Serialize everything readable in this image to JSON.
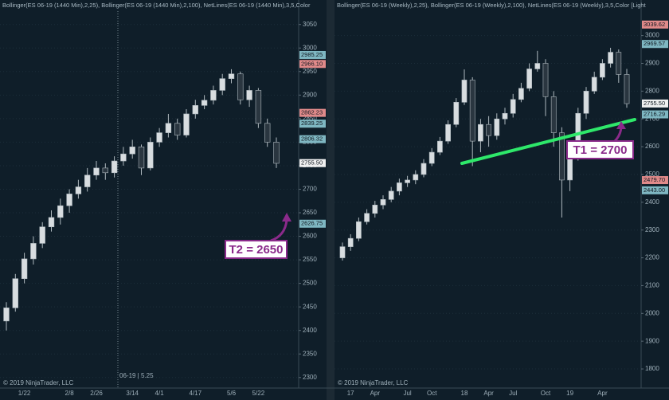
{
  "chart_data": [
    {
      "type": "candlestick",
      "header": "Bollinger(ES 06-19 (1440 Min),2,25), Bollinger(ES 06-19 (1440 Min),2,100), NetLines(ES 06-19 (1440 Min),3,5,Color",
      "footer": "© 2019 NinjaTrader, LLC",
      "cursor_label": "06-19 | 5.25",
      "target": "T2 = 2650",
      "categories": [
        null,
        null,
        "1/22",
        null,
        null,
        null,
        null,
        "2/8",
        null,
        null,
        "2/26",
        null,
        null,
        null,
        "3/14",
        null,
        null,
        "4/1",
        null,
        null,
        null,
        "4/17",
        null,
        null,
        null,
        "5/6",
        null,
        null,
        "5/22",
        null,
        null
      ],
      "open": [
        2420,
        2448,
        2510,
        2552,
        2585,
        2620,
        2640,
        2665,
        2690,
        2705,
        2730,
        2745,
        2735,
        2760,
        2775,
        2790,
        2745,
        2800,
        2820,
        2840,
        2815,
        2860,
        2878,
        2889,
        2910,
        2935,
        2945,
        2890,
        2910,
        2840,
        2800
      ],
      "high": [
        2460,
        2520,
        2565,
        2600,
        2630,
        2655,
        2680,
        2700,
        2720,
        2745,
        2760,
        2755,
        2770,
        2790,
        2805,
        2795,
        2810,
        2830,
        2860,
        2850,
        2870,
        2890,
        2900,
        2920,
        2945,
        2955,
        2950,
        2920,
        2915,
        2850,
        2810
      ],
      "low": [
        2400,
        2440,
        2500,
        2540,
        2575,
        2610,
        2625,
        2650,
        2680,
        2695,
        2720,
        2720,
        2725,
        2750,
        2765,
        2730,
        2740,
        2790,
        2810,
        2805,
        2810,
        2850,
        2870,
        2880,
        2900,
        2925,
        2880,
        2875,
        2830,
        2790,
        2745
      ],
      "close": [
        2448,
        2510,
        2552,
        2585,
        2620,
        2640,
        2665,
        2690,
        2705,
        2730,
        2745,
        2735,
        2760,
        2775,
        2790,
        2745,
        2800,
        2820,
        2840,
        2815,
        2860,
        2878,
        2889,
        2910,
        2935,
        2945,
        2890,
        2910,
        2840,
        2800,
        2755
      ],
      "up_color": "#d8dde0",
      "down_color": "#2a3640",
      "wick_color": "#aeb8be",
      "ylim": [
        2281,
        3102
      ],
      "yticks": [
        2300,
        2350,
        2400,
        2450,
        2500,
        2550,
        2600,
        2650,
        2700,
        2750,
        2800,
        2850,
        2900,
        2950,
        3000,
        3050
      ],
      "grid": true,
      "price_tags": [
        {
          "value": 2985.25,
          "label": "2985.25",
          "color": "#7fb7c2"
        },
        {
          "value": 2966.1,
          "label": "2966.10",
          "color": "#e08a8a"
        },
        {
          "value": 2862.23,
          "label": "2862.23",
          "color": "#e08a8a"
        },
        {
          "value": 2839.25,
          "label": "2839.25",
          "color": "#7fb7c2"
        },
        {
          "value": 2806.32,
          "label": "2806.32",
          "color": "#7fb7c2"
        },
        {
          "value": 2755.5,
          "label": "2755.50",
          "color": "#f0f0f0"
        },
        {
          "value": 2626.75,
          "label": "2626.75",
          "color": "#7fb7c2"
        }
      ]
    },
    {
      "type": "candlestick",
      "header": "Bollinger(ES 06-19 (Weekly),2,25), Bollinger(ES 06-19 (Weekly),2,100), NetLines(ES 06-19 (Weekly),3,5,Color [Light",
      "footer": "© 2019 NinjaTrader, LLC",
      "target": "T1 = 2700",
      "categories": [
        null,
        "17",
        null,
        null,
        "Apr",
        null,
        null,
        null,
        "Jul",
        null,
        null,
        "Oct",
        null,
        null,
        null,
        "18",
        null,
        null,
        "Apr",
        null,
        null,
        "Jul",
        null,
        null,
        null,
        "Oct",
        null,
        null,
        "19",
        null,
        null,
        null,
        "Apr",
        null,
        null,
        null
      ],
      "open": [
        2200,
        2240,
        2270,
        2330,
        2360,
        2390,
        2410,
        2440,
        2470,
        2480,
        2500,
        2540,
        2580,
        2620,
        2680,
        2760,
        2840,
        2620,
        2680,
        2640,
        2700,
        2720,
        2770,
        2810,
        2880,
        2900,
        2780,
        2650,
        2480,
        2560,
        2720,
        2800,
        2850,
        2900,
        2940,
        2860
      ],
      "high": [
        2255,
        2285,
        2345,
        2375,
        2405,
        2425,
        2455,
        2485,
        2495,
        2515,
        2555,
        2595,
        2635,
        2695,
        2775,
        2878,
        2850,
        2700,
        2710,
        2720,
        2740,
        2790,
        2830,
        2900,
        2945,
        2915,
        2800,
        2670,
        2580,
        2740,
        2815,
        2870,
        2915,
        2956,
        2950,
        2880
      ],
      "low": [
        2190,
        2225,
        2260,
        2320,
        2345,
        2375,
        2400,
        2425,
        2455,
        2465,
        2490,
        2530,
        2570,
        2610,
        2670,
        2750,
        2530,
        2580,
        2600,
        2625,
        2680,
        2705,
        2760,
        2800,
        2870,
        2710,
        2600,
        2345,
        2440,
        2550,
        2700,
        2790,
        2840,
        2885,
        2830,
        2740
      ],
      "close": [
        2240,
        2270,
        2330,
        2360,
        2390,
        2410,
        2440,
        2470,
        2480,
        2500,
        2540,
        2580,
        2620,
        2680,
        2760,
        2840,
        2620,
        2680,
        2640,
        2700,
        2720,
        2770,
        2810,
        2880,
        2900,
        2780,
        2650,
        2480,
        2560,
        2720,
        2800,
        2850,
        2900,
        2940,
        2860,
        2755
      ],
      "up_color": "#d8dde0",
      "down_color": "#2a3640",
      "wick_color": "#aeb8be",
      "ylim": [
        1737,
        3128
      ],
      "yticks": [
        1800,
        1900,
        2000,
        2100,
        2200,
        2300,
        2400,
        2500,
        2600,
        2700,
        2800,
        2900,
        3000
      ],
      "grid": true,
      "price_tags": [
        {
          "value": 3039.62,
          "label": "3039.62",
          "color": "#e08a8a"
        },
        {
          "value": 2969.57,
          "label": "2969.57",
          "color": "#7fb7c2"
        },
        {
          "value": 2755.5,
          "label": "2755.50",
          "color": "#f0f0f0"
        },
        {
          "value": 2716.29,
          "label": "2716.29",
          "color": "#7fb7c2"
        },
        {
          "value": 2479.7,
          "label": "2479.70",
          "color": "#e08a8a"
        },
        {
          "value": 2443,
          "label": "2443.00",
          "color": "#7fb7c2"
        }
      ]
    }
  ]
}
